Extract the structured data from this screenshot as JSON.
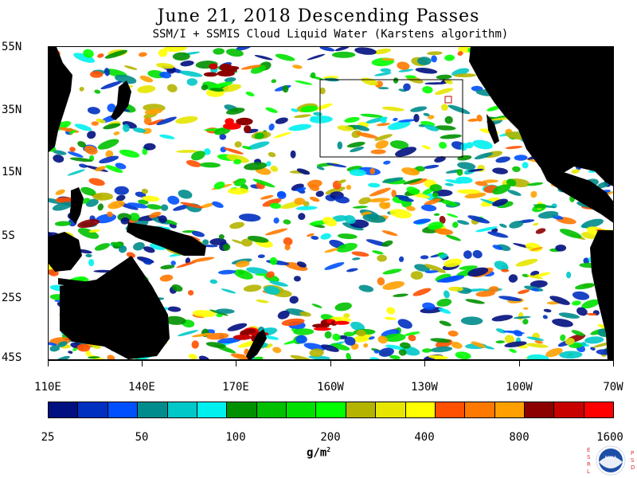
{
  "title": "June 21, 2018  Descending Passes",
  "subtitle": "SSM/I + SSMIS Cloud Liquid Water (Karstens algorithm)",
  "latitude_labels": [
    "55N",
    "35N",
    "15N",
    "5S",
    "25S",
    "45S"
  ],
  "longitude_labels": [
    "110E",
    "140E",
    "170E",
    "160W",
    "130W",
    "100W",
    "70W"
  ],
  "colorbar": {
    "colors": [
      "#001080",
      "#0030c0",
      "#0050ff",
      "#008c8c",
      "#00c8c8",
      "#00f0f0",
      "#009000",
      "#00c000",
      "#00e000",
      "#00ff00",
      "#b4b400",
      "#e6e600",
      "#ffff00",
      "#ff5000",
      "#ff7800",
      "#ffa000",
      "#8c0000",
      "#c80000",
      "#ff0000"
    ],
    "tick_labels": [
      "25",
      "50",
      "100",
      "200",
      "400",
      "800",
      "1600"
    ]
  },
  "units": {
    "base": "g/m",
    "exponent": "2"
  },
  "logo": {
    "left_letters": [
      "E",
      "S",
      "R",
      "L"
    ],
    "right_letters": [
      "P",
      "S",
      "D"
    ],
    "center_text": "NOAA"
  },
  "colors": {
    "land": "#000000",
    "ocean": "#ffffff",
    "frame": "#000000"
  }
}
